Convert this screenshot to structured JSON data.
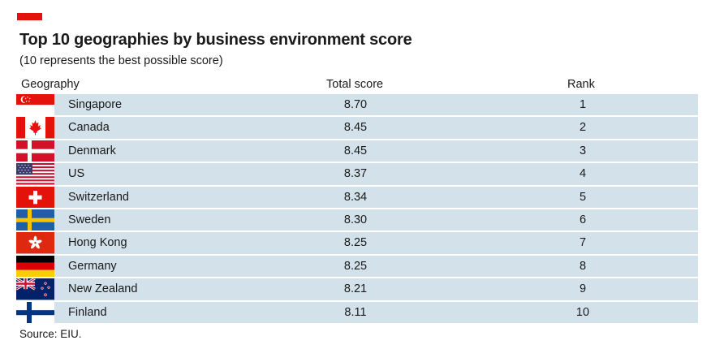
{
  "colors": {
    "accent": "#e3120b",
    "row_fill": "#d3e1ea"
  },
  "chart_data": {
    "type": "table",
    "title": "Top 10 geographies by business environment score",
    "subtitle": "(10 represents the best possible score)",
    "columns": [
      "Geography",
      "Total score",
      "Rank"
    ],
    "rows": [
      {
        "geography": "Singapore",
        "score": "8.70",
        "rank": "1",
        "flag_icon": "singapore-flag-icon"
      },
      {
        "geography": "Canada",
        "score": "8.45",
        "rank": "2",
        "flag_icon": "canada-flag-icon"
      },
      {
        "geography": "Denmark",
        "score": "8.45",
        "rank": "3",
        "flag_icon": "denmark-flag-icon"
      },
      {
        "geography": "US",
        "score": "8.37",
        "rank": "4",
        "flag_icon": "us-flag-icon"
      },
      {
        "geography": "Switzerland",
        "score": "8.34",
        "rank": "5",
        "flag_icon": "switzerland-flag-icon"
      },
      {
        "geography": "Sweden",
        "score": "8.30",
        "rank": "6",
        "flag_icon": "sweden-flag-icon"
      },
      {
        "geography": "Hong Kong",
        "score": "8.25",
        "rank": "7",
        "flag_icon": "hong-kong-flag-icon"
      },
      {
        "geography": "Germany",
        "score": "8.25",
        "rank": "8",
        "flag_icon": "germany-flag-icon"
      },
      {
        "geography": "New Zealand",
        "score": "8.21",
        "rank": "9",
        "flag_icon": "new-zealand-flag-icon"
      },
      {
        "geography": "Finland",
        "score": "8.11",
        "rank": "10",
        "flag_icon": "finland-flag-icon"
      }
    ],
    "source": "Source: EIU."
  }
}
